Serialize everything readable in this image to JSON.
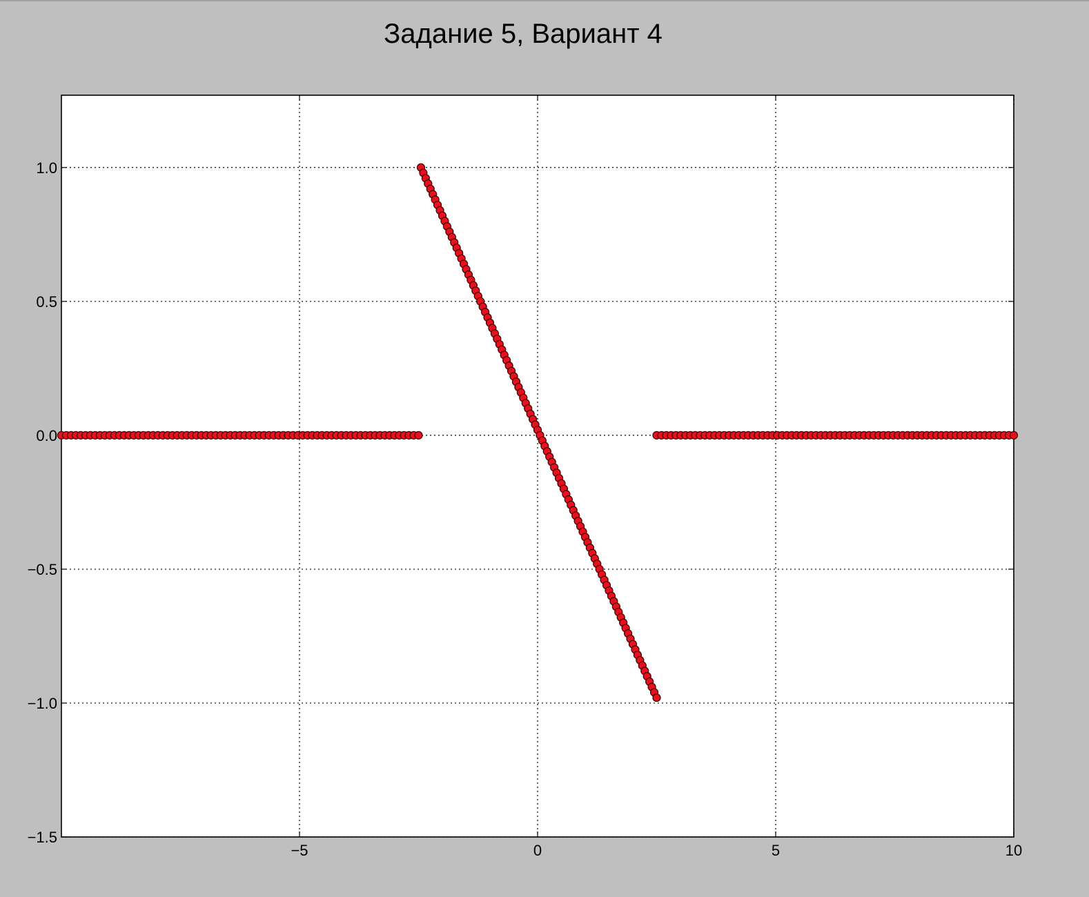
{
  "chart_data": {
    "type": "scatter",
    "title": "Задание 5, Вариант 4",
    "xlabel": "",
    "ylabel": "",
    "xlim": [
      -10,
      10
    ],
    "ylim": [
      -1.5,
      1.27
    ],
    "grid": true,
    "x_ticks": [
      -5,
      0,
      5,
      10
    ],
    "x_tick_labels": [
      "−5",
      "0",
      "5",
      "10"
    ],
    "y_ticks": [
      1.0,
      0.5,
      0.0,
      -0.5,
      -1.0,
      -1.5
    ],
    "y_tick_labels": [
      "1.0",
      "0.5",
      "0.0",
      "−0.5",
      "−1.0",
      "−1.5"
    ],
    "marker_color": "#e8101c",
    "marker_edge_color": "#3a0000",
    "series": [
      {
        "segments": [
          {
            "x_start": -10,
            "x_end": -2.5,
            "y_start": 0,
            "y_end": 0,
            "count": 75
          },
          {
            "x_start": -2.45,
            "x_end": 2.5,
            "y_start": 1.0,
            "y_end": -0.98,
            "count": 100
          },
          {
            "x_start": 2.5,
            "x_end": 10,
            "y_start": 0,
            "y_end": 0,
            "count": 75
          }
        ]
      }
    ]
  }
}
